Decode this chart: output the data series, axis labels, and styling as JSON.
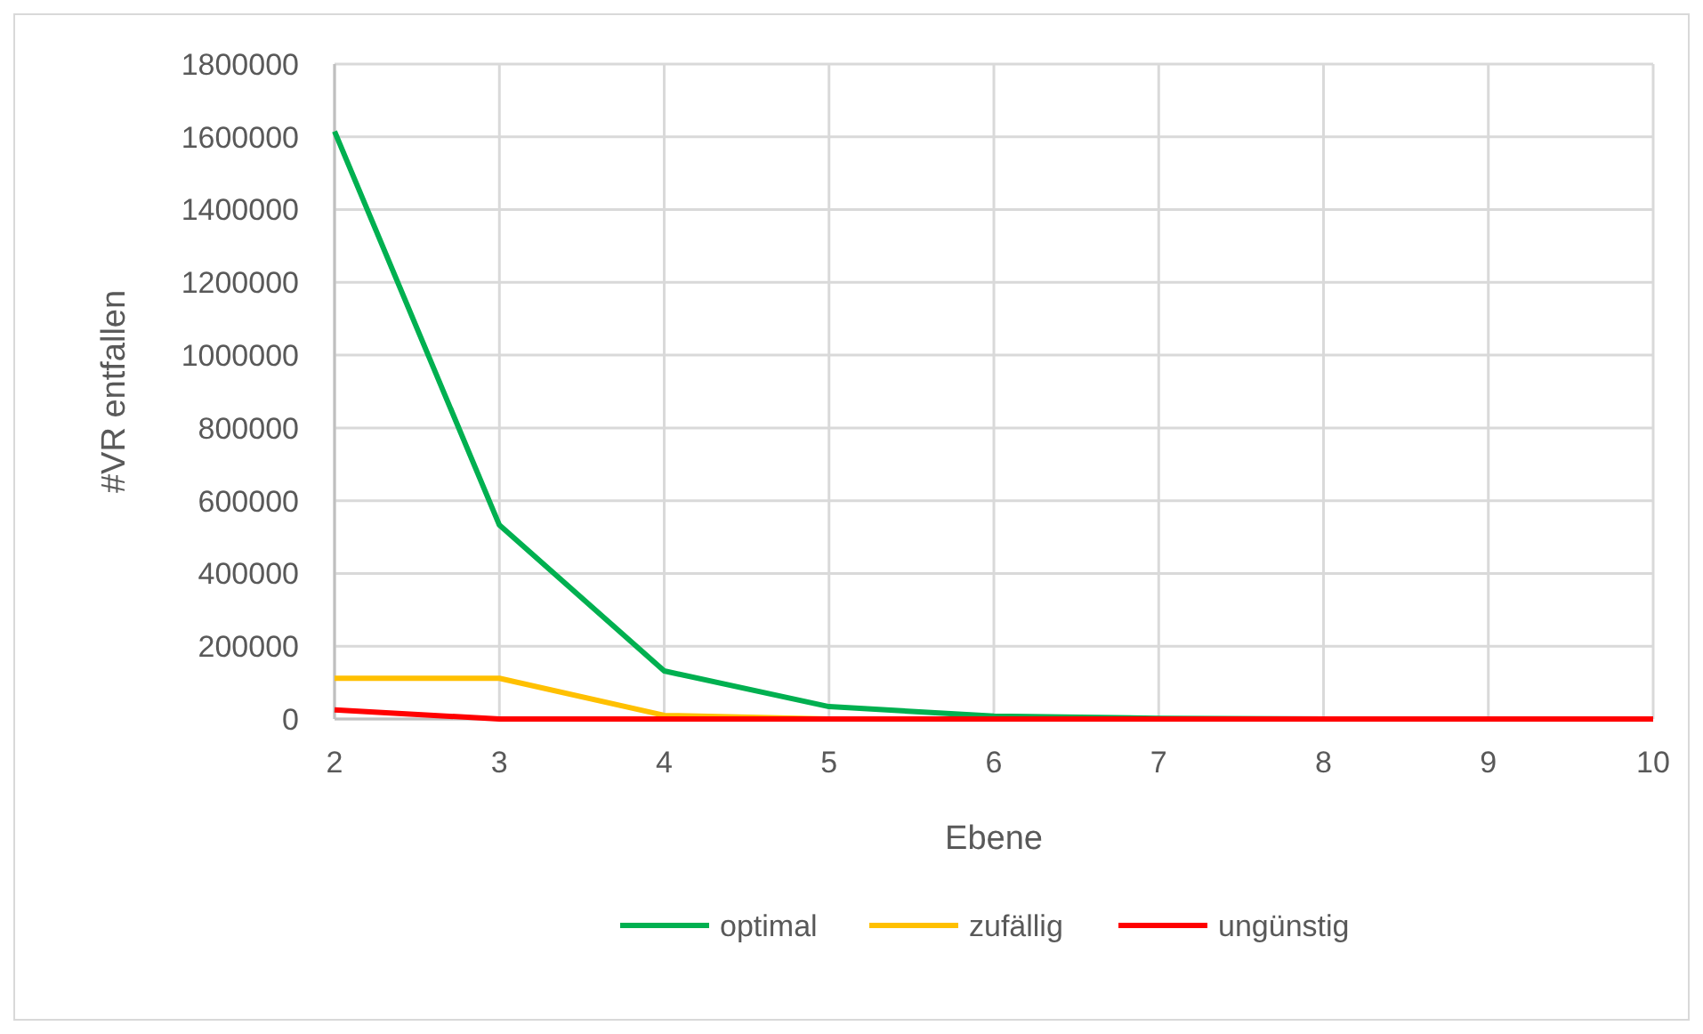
{
  "chart_data": {
    "type": "line",
    "xlabel": "Ebene",
    "ylabel": "#VR entfallen",
    "x": [
      2,
      3,
      4,
      5,
      6,
      7,
      8,
      9,
      10
    ],
    "series": [
      {
        "name": "optimal",
        "color": "#00b050",
        "values": [
          1615000,
          533000,
          132000,
          34000,
          8000,
          2000,
          0,
          0,
          0
        ]
      },
      {
        "name": "zufällig",
        "color": "#ffc000",
        "values": [
          112000,
          112000,
          10000,
          0,
          null,
          null,
          null,
          null,
          null
        ]
      },
      {
        "name": "ungünstig",
        "color": "#ff0000",
        "values": [
          25000,
          0,
          0,
          0,
          0,
          0,
          0,
          0,
          0
        ]
      }
    ],
    "xlim": [
      2,
      10
    ],
    "xticks": [
      2,
      3,
      4,
      5,
      6,
      7,
      8,
      9,
      10
    ],
    "ylim": [
      0,
      1800000
    ],
    "yticks": [
      0,
      200000,
      400000,
      600000,
      800000,
      1000000,
      1200000,
      1400000,
      1600000,
      1800000
    ],
    "grid": true,
    "legend": "bottom",
    "marker": "none",
    "line_style": "solid"
  }
}
